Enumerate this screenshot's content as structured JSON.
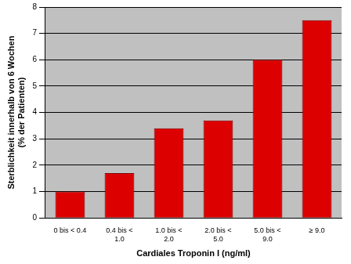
{
  "chart_data": {
    "type": "bar",
    "x_label": "Cardiales Troponin I (ng/ml)",
    "y_label": "Sterblichkeit innerhalb von 6 Wochen (% der Patienten)",
    "categories": [
      "0 bis < 0.4",
      "0.4 bis < 1.0",
      "1.0 bis < 2.0",
      "2.0 bis < 5.0",
      "5.0 bis < 9.0",
      "≥ 9.0"
    ],
    "values": [
      1.0,
      1.7,
      3.4,
      3.7,
      6.0,
      7.5
    ],
    "color": "#dd0000",
    "ylim": [
      0,
      8
    ],
    "yticks": [
      0,
      1,
      2,
      3,
      4,
      5,
      6,
      7,
      8
    ],
    "grid": true
  }
}
